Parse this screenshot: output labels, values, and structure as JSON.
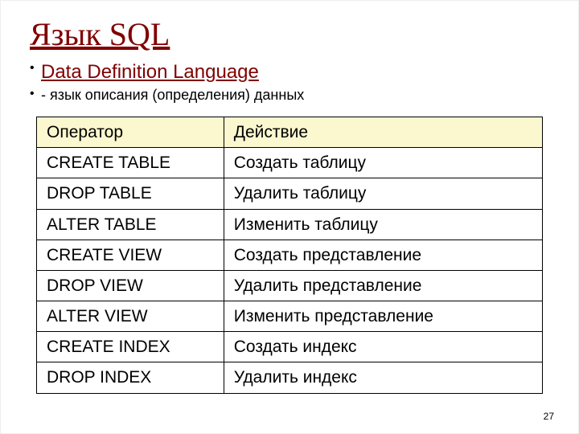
{
  "title": "Язык SQL",
  "bullet1": "Data Definition Language",
  "bullet2": "- язык описания (определения) данных",
  "table": {
    "columns": [
      "Оператор",
      "Действие"
    ],
    "rows": [
      [
        "CREATE TABLE",
        "Создать таблицу"
      ],
      [
        "DROP TABLE",
        "Удалить таблицу"
      ],
      [
        "ALTER TABLE",
        "Изменить таблицу"
      ],
      [
        "CREATE VIEW",
        "Создать представление"
      ],
      [
        "DROP VIEW",
        "Удалить представление"
      ],
      [
        "ALTER VIEW",
        "Изменить представление"
      ],
      [
        "CREATE INDEX",
        "Создать индекс"
      ],
      [
        "DROP INDEX",
        "Удалить индекс"
      ]
    ],
    "header_bg": "#fbf7cf",
    "border_color": "#000000",
    "cell_fontsize": 21,
    "col_widths_pct": [
      37,
      63
    ]
  },
  "page_number": "27",
  "colors": {
    "title_color": "#800000",
    "bullet1_color": "#800000",
    "text_color": "#000000",
    "background": "#ffffff"
  }
}
